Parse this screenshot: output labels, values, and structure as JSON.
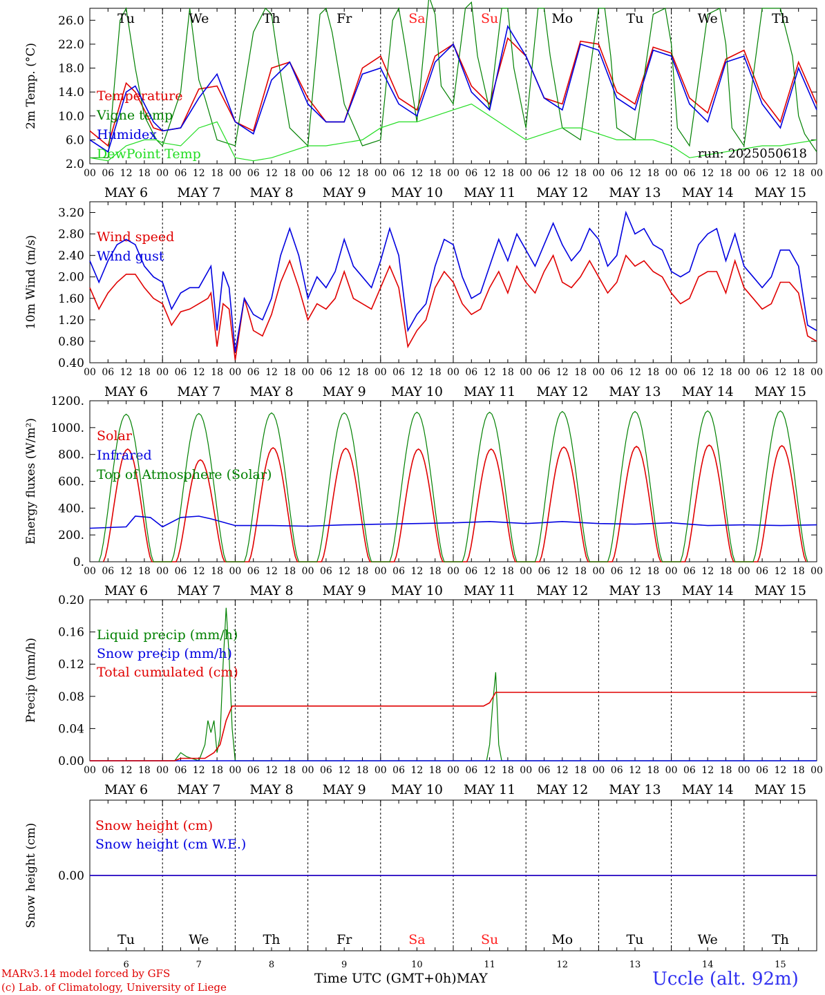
{
  "footer": {
    "credit_line1": "MARv3.14 model forced by GFS",
    "credit_line2": "(c) Lab. of Climatology, University of Liege",
    "x_axis_title": "Time UTC (GMT+0h)",
    "x_axis_month": "MAY",
    "station": "Uccle (alt. 92m)"
  },
  "x_axis": {
    "hour_ticks": [
      "00",
      "06",
      "12",
      "18"
    ],
    "final_tick": "00",
    "day_labels": [
      "MAY  6",
      "MAY  7",
      "MAY  8",
      "MAY  9",
      "MAY 10",
      "MAY 11",
      "MAY 12",
      "MAY 13",
      "MAY 14",
      "MAY 15"
    ],
    "weekdays": [
      "Tu",
      "We",
      "Th",
      "Fr",
      "Sa",
      "Su",
      "Mo",
      "Tu",
      "We",
      "Th"
    ],
    "day_numbers": [
      "6",
      "7",
      "8",
      "9",
      "10",
      "11",
      "12",
      "13",
      "14",
      "15"
    ],
    "weekend_days": [
      "Sa",
      "Su"
    ]
  },
  "colors": {
    "red": "#e00000",
    "blue": "#0000e0",
    "green": "#008000",
    "lightgreen": "#22dd22",
    "weekend": "#ff2020"
  },
  "chart_data": [
    {
      "type": "line",
      "ylabel": "2m Temp. (°C)",
      "ylim": [
        2.0,
        28.0
      ],
      "yticks": [
        "26.0",
        "22.0",
        "18.0",
        "14.0",
        "10.0",
        "6.0",
        "2.0"
      ],
      "x_unit": "hours since 2025-05-06 00 UTC",
      "annotation": "run: 2025050618",
      "series": [
        {
          "name": "Temperature",
          "color": "red",
          "x": [
            0,
            6,
            12,
            15,
            21,
            24,
            30,
            36,
            42,
            48,
            54,
            60,
            66,
            72,
            78,
            84,
            90,
            96,
            102,
            108,
            114,
            120,
            126,
            132,
            138,
            144,
            150,
            156,
            162,
            168,
            174,
            180,
            186,
            192,
            198,
            204,
            210,
            216,
            222,
            228,
            234,
            240
          ],
          "y": [
            7.5,
            5,
            15.5,
            14,
            8,
            7.5,
            8,
            14.5,
            15,
            9,
            7.5,
            18,
            19,
            13,
            9,
            9,
            18,
            20,
            13,
            11,
            20,
            22,
            15,
            12,
            23,
            20,
            13,
            12,
            22.5,
            22,
            14,
            12,
            21.5,
            20.5,
            13,
            10.5,
            19.5,
            21,
            13,
            9,
            19,
            12
          ]
        },
        {
          "name": "Vigne temp",
          "color": "green",
          "x": [
            0,
            6,
            10,
            12,
            15,
            18,
            22,
            24,
            30,
            33,
            36,
            38,
            42,
            48,
            54,
            58,
            60,
            62,
            66,
            72,
            76,
            78,
            80,
            84,
            90,
            96,
            100,
            102,
            104,
            108,
            112,
            114,
            116,
            120,
            124,
            126,
            128,
            132,
            136,
            138,
            140,
            144,
            148,
            150,
            152,
            156,
            162,
            168,
            170,
            172,
            174,
            180,
            186,
            190,
            192,
            194,
            198,
            204,
            208,
            210,
            212,
            216,
            222,
            228,
            232,
            234,
            236,
            240
          ],
          "y": [
            3,
            3,
            26,
            28,
            18,
            10,
            6,
            5,
            14,
            28,
            16,
            13,
            6,
            5,
            24,
            28,
            27,
            20,
            8,
            5,
            27,
            28,
            24,
            12,
            5,
            6,
            26,
            28,
            22,
            9,
            30,
            27,
            15,
            12,
            28,
            29,
            20,
            11,
            28,
            28,
            18,
            8,
            28,
            28,
            20,
            8,
            6,
            28,
            28,
            20,
            8,
            6,
            27,
            28,
            22,
            8,
            5,
            27,
            28,
            22,
            8,
            5,
            28,
            28,
            20,
            10,
            7,
            4
          ]
        },
        {
          "name": "Humidex",
          "color": "blue",
          "x": [
            0,
            6,
            12,
            15,
            21,
            24,
            30,
            36,
            42,
            48,
            54,
            60,
            66,
            72,
            78,
            84,
            90,
            96,
            102,
            108,
            114,
            120,
            126,
            132,
            138,
            144,
            150,
            156,
            162,
            168,
            174,
            180,
            186,
            192,
            198,
            204,
            210,
            216,
            222,
            228,
            234,
            240
          ],
          "y": [
            6,
            4,
            14,
            15,
            9,
            7.5,
            8,
            13,
            17,
            9,
            7,
            16,
            19,
            12,
            9,
            9,
            17,
            18,
            12,
            10,
            19,
            22,
            14,
            11,
            25,
            20,
            13,
            11,
            22,
            21,
            13,
            11,
            21,
            20,
            12,
            9,
            19,
            20,
            12,
            8,
            18,
            11
          ]
        },
        {
          "name": "DewPoint Temp",
          "color": "lightgreen",
          "x": [
            0,
            6,
            12,
            18,
            22,
            24,
            30,
            36,
            42,
            48,
            54,
            60,
            66,
            72,
            78,
            84,
            90,
            96,
            102,
            108,
            114,
            120,
            126,
            132,
            138,
            144,
            150,
            156,
            162,
            168,
            174,
            180,
            186,
            192,
            198,
            204,
            210,
            216,
            222,
            228,
            234,
            240
          ],
          "y": [
            3,
            2.5,
            5,
            6,
            6,
            5.5,
            5,
            8,
            9,
            3,
            2.5,
            3,
            4,
            5,
            5,
            5.5,
            6,
            8,
            9,
            9,
            10,
            11,
            12,
            10,
            8,
            6,
            7,
            8,
            8,
            7,
            6,
            6,
            6,
            5,
            3,
            3.5,
            4,
            4.5,
            5,
            5,
            5.5,
            6
          ]
        }
      ]
    },
    {
      "type": "line",
      "ylabel": "10m Wind (m/s)",
      "ylim": [
        0.4,
        3.4
      ],
      "yticks": [
        "3.20",
        "2.80",
        "2.40",
        "2.00",
        "1.60",
        "1.20",
        "0.80",
        "0.40"
      ],
      "x_unit": "hours since 2025-05-06 00 UTC",
      "series": [
        {
          "name": "Wind speed",
          "color": "red",
          "x": [
            0,
            3,
            6,
            9,
            12,
            15,
            18,
            21,
            24,
            27,
            30,
            33,
            36,
            39,
            40,
            42,
            44,
            46,
            48,
            51,
            54,
            57,
            60,
            63,
            66,
            69,
            72,
            75,
            78,
            81,
            84,
            87,
            90,
            93,
            96,
            99,
            102,
            105,
            108,
            111,
            114,
            117,
            120,
            123,
            126,
            129,
            132,
            135,
            138,
            141,
            144,
            147,
            150,
            153,
            156,
            159,
            162,
            165,
            168,
            171,
            174,
            177,
            180,
            183,
            186,
            189,
            192,
            195,
            198,
            201,
            204,
            207,
            210,
            213,
            216,
            219,
            222,
            225,
            228,
            231,
            234,
            237,
            240
          ],
          "y": [
            1.8,
            1.4,
            1.7,
            1.9,
            2.05,
            2.05,
            1.8,
            1.6,
            1.5,
            1.1,
            1.35,
            1.4,
            1.5,
            1.6,
            1.7,
            0.7,
            1.5,
            1.4,
            0.45,
            1.6,
            1.0,
            0.9,
            1.3,
            1.9,
            2.3,
            1.8,
            1.2,
            1.5,
            1.4,
            1.6,
            2.1,
            1.6,
            1.5,
            1.4,
            1.8,
            2.2,
            1.8,
            0.7,
            1.0,
            1.2,
            1.8,
            2.1,
            1.9,
            1.5,
            1.3,
            1.4,
            1.8,
            2.1,
            1.7,
            2.2,
            1.9,
            1.7,
            2.1,
            2.4,
            1.9,
            1.8,
            2.0,
            2.3,
            2.0,
            1.7,
            1.9,
            2.4,
            2.2,
            2.3,
            2.1,
            2.0,
            1.7,
            1.5,
            1.6,
            2.0,
            2.1,
            2.1,
            1.7,
            2.3,
            1.8,
            1.6,
            1.4,
            1.5,
            1.9,
            1.9,
            1.7,
            0.9,
            0.8
          ]
        },
        {
          "name": "Wind gust",
          "color": "blue",
          "x": [
            0,
            3,
            6,
            9,
            12,
            15,
            18,
            21,
            24,
            27,
            30,
            33,
            36,
            39,
            40,
            42,
            44,
            46,
            48,
            51,
            54,
            57,
            60,
            63,
            66,
            69,
            72,
            75,
            78,
            81,
            84,
            87,
            90,
            93,
            96,
            99,
            102,
            105,
            108,
            111,
            114,
            117,
            120,
            123,
            126,
            129,
            132,
            135,
            138,
            141,
            144,
            147,
            150,
            153,
            156,
            159,
            162,
            165,
            168,
            171,
            174,
            177,
            180,
            183,
            186,
            189,
            192,
            195,
            198,
            201,
            204,
            207,
            210,
            213,
            216,
            219,
            222,
            225,
            228,
            231,
            234,
            237,
            240
          ],
          "y": [
            2.3,
            1.9,
            2.3,
            2.6,
            2.7,
            2.6,
            2.2,
            2.0,
            1.9,
            1.4,
            1.7,
            1.8,
            1.8,
            2.1,
            2.2,
            1.0,
            2.1,
            1.8,
            0.6,
            1.6,
            1.3,
            1.2,
            1.6,
            2.4,
            2.9,
            2.4,
            1.6,
            2.0,
            1.8,
            2.1,
            2.7,
            2.2,
            2.0,
            1.8,
            2.3,
            2.9,
            2.4,
            1.0,
            1.3,
            1.5,
            2.2,
            2.7,
            2.6,
            2.0,
            1.6,
            1.7,
            2.2,
            2.7,
            2.3,
            2.8,
            2.5,
            2.2,
            2.6,
            3.0,
            2.6,
            2.3,
            2.5,
            2.9,
            2.7,
            2.2,
            2.4,
            3.2,
            2.8,
            2.9,
            2.6,
            2.5,
            2.1,
            2.0,
            2.1,
            2.6,
            2.8,
            2.9,
            2.3,
            2.8,
            2.2,
            2.0,
            1.8,
            2.0,
            2.5,
            2.5,
            2.2,
            1.1,
            1.0
          ]
        }
      ]
    },
    {
      "type": "line",
      "ylabel": "Energy fluxes (W/m²)",
      "ylim": [
        0,
        1200
      ],
      "yticks": [
        "1200.",
        "1000.",
        "800.",
        "600.",
        "400.",
        "200.",
        "0."
      ],
      "x_unit": "hours since 2025-05-06 00 UTC",
      "series": [
        {
          "name": "Solar",
          "color": "red",
          "type": "daily_peaks",
          "peaks": [
            840,
            760,
            850,
            845,
            840,
            840,
            855,
            860,
            870,
            865
          ],
          "peak_hour": 12.5,
          "half_width": 8
        },
        {
          "name": "Infrared",
          "color": "blue",
          "x": [
            0,
            12,
            15,
            20,
            24,
            30,
            36,
            40,
            48,
            60,
            72,
            84,
            96,
            108,
            120,
            132,
            144,
            156,
            168,
            180,
            192,
            204,
            216,
            228,
            240
          ],
          "y": [
            250,
            260,
            340,
            330,
            260,
            330,
            340,
            320,
            270,
            270,
            265,
            275,
            280,
            285,
            290,
            300,
            285,
            300,
            285,
            280,
            290,
            270,
            275,
            270,
            275
          ]
        },
        {
          "name": "Top of Atmosphere (Solar)",
          "color": "green",
          "type": "daily_peaks",
          "peaks": [
            1100,
            1105,
            1110,
            1110,
            1115,
            1115,
            1120,
            1120,
            1125,
            1125
          ],
          "peak_hour": 12,
          "half_width": 9
        }
      ]
    },
    {
      "type": "line",
      "ylabel": "Precip (mm/h)",
      "ylim": [
        0,
        0.2
      ],
      "yticks": [
        "0.20",
        "0.16",
        "0.12",
        "0.08",
        "0.04",
        "0.00"
      ],
      "x_unit": "hours since 2025-05-06 00 UTC",
      "series": [
        {
          "name": "Liquid precip (mm/h)",
          "color": "green",
          "x": [
            0,
            28,
            30,
            32,
            36,
            38,
            39,
            40,
            41,
            42,
            43,
            44,
            45,
            46,
            47,
            48,
            131,
            132,
            133,
            134,
            135,
            136,
            240
          ],
          "y": [
            0,
            0,
            0.01,
            0.005,
            0,
            0.02,
            0.05,
            0.035,
            0.05,
            0.01,
            0.03,
            0.12,
            0.19,
            0.13,
            0.04,
            0,
            0,
            0.02,
            0.07,
            0.11,
            0.02,
            0,
            0
          ]
        },
        {
          "name": "Snow precip (mm/h)",
          "color": "blue",
          "x": [
            0,
            240
          ],
          "y": [
            0,
            0
          ]
        },
        {
          "name": "Total cumulated (cm)",
          "color": "red",
          "x": [
            0,
            28,
            30,
            38,
            41,
            43,
            45,
            47,
            48,
            130,
            132,
            134,
            136,
            240
          ],
          "y": [
            0,
            0,
            0.003,
            0.003,
            0.01,
            0.02,
            0.05,
            0.068,
            0.068,
            0.068,
            0.072,
            0.085,
            0.085,
            0.085
          ]
        }
      ]
    },
    {
      "type": "line",
      "ylabel": "Snow height (cm)",
      "yticks": [
        "0.00"
      ],
      "x_unit": "hours since 2025-05-06 00 UTC",
      "series": [
        {
          "name": "Snow height (cm)",
          "color": "red",
          "x": [
            0,
            240
          ],
          "y": [
            0,
            0
          ]
        },
        {
          "name": "Snow height (cm W.E.)",
          "color": "blue",
          "x": [
            0,
            240
          ],
          "y": [
            0,
            0
          ]
        }
      ]
    }
  ]
}
